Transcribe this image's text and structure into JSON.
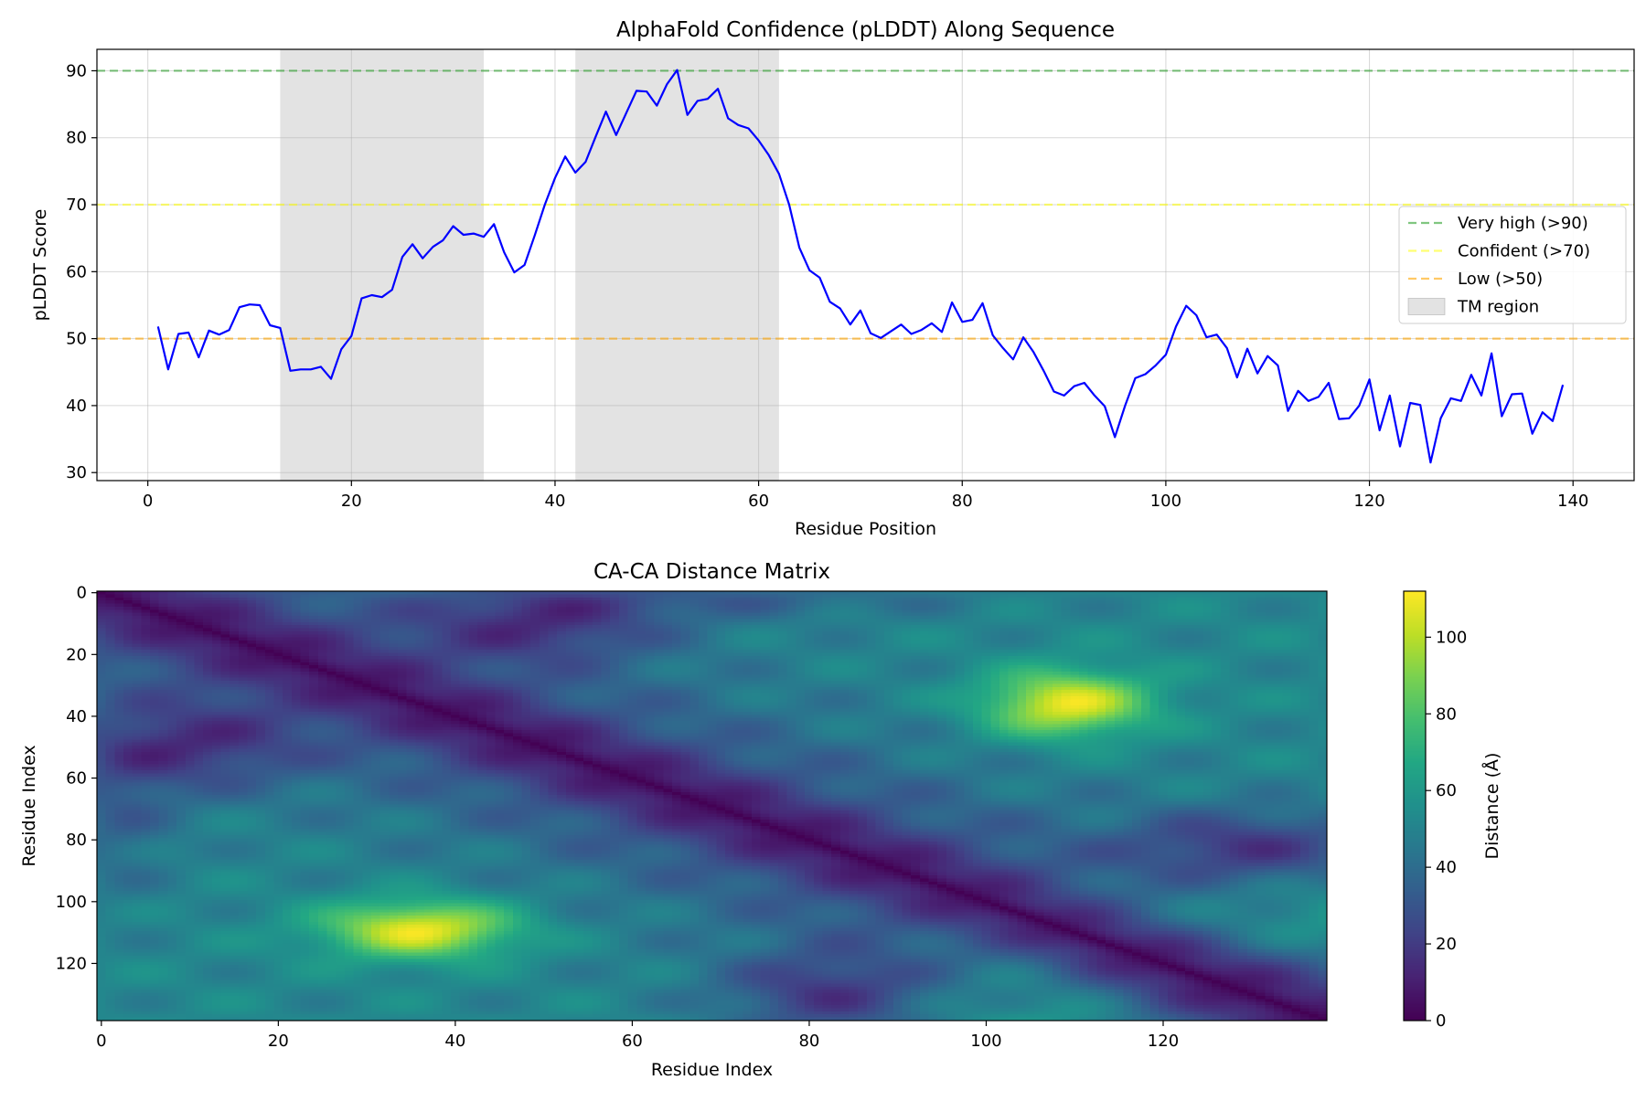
{
  "colors": {
    "line": "#0000ff",
    "very_high": "#2ca02c",
    "confident": "#ffff00",
    "low": "#ffa500",
    "tm_region": "#808080",
    "grid": "#b0b0b0",
    "colormap": "viridis"
  },
  "chart_data": [
    {
      "type": "line",
      "title": "AlphaFold Confidence (pLDDT) Along Sequence",
      "xlabel": "Residue Position",
      "ylabel": "pLDDT Score",
      "xlim": [
        -5,
        146
      ],
      "ylim": [
        28.8,
        93.2
      ],
      "xticks": [
        0,
        20,
        40,
        60,
        80,
        100,
        120,
        140
      ],
      "yticks": [
        30,
        40,
        50,
        60,
        70,
        80,
        90
      ],
      "grid": true,
      "legend_position": "center-right",
      "series": [
        {
          "name": "pLDDT",
          "x": [
            1,
            2,
            3,
            4,
            5,
            6,
            7,
            8,
            9,
            10,
            11,
            12,
            13,
            14,
            15,
            16,
            17,
            18,
            19,
            20,
            21,
            22,
            23,
            24,
            25,
            26,
            27,
            28,
            29,
            30,
            31,
            32,
            33,
            34,
            35,
            36,
            37,
            38,
            39,
            40,
            41,
            42,
            43,
            44,
            45,
            46,
            47,
            48,
            49,
            50,
            51,
            52,
            53,
            54,
            55,
            56,
            57,
            58,
            59,
            60,
            61,
            62,
            63,
            64,
            65,
            66,
            67,
            68,
            69,
            70,
            71,
            72,
            73,
            74,
            75,
            76,
            77,
            78,
            79,
            80,
            81,
            82,
            83,
            84,
            85,
            86,
            87,
            88,
            89,
            90,
            91,
            92,
            93,
            94,
            95,
            96,
            97,
            98,
            99,
            100,
            101,
            102,
            103,
            104,
            105,
            106,
            107,
            108,
            109,
            110,
            111,
            112,
            113,
            114,
            115,
            116,
            117,
            118,
            119,
            120,
            121,
            122,
            123,
            124,
            125,
            126,
            127,
            128,
            129,
            130,
            131,
            132,
            133,
            134,
            135,
            136,
            137,
            138,
            139
          ],
          "values": [
            51.8,
            45.4,
            50.7,
            50.9,
            47.2,
            51.2,
            50.6,
            51.3,
            54.7,
            55.1,
            55.0,
            52.0,
            51.6,
            45.2,
            45.4,
            45.4,
            45.8,
            44.0,
            48.4,
            50.4,
            56.0,
            56.5,
            56.2,
            57.3,
            62.2,
            64.1,
            62.0,
            63.7,
            64.7,
            66.8,
            65.5,
            65.7,
            65.2,
            67.1,
            62.9,
            59.9,
            61.0,
            65.4,
            70.0,
            74.0,
            77.2,
            74.8,
            76.4,
            80.2,
            83.9,
            80.4,
            83.7,
            87.0,
            86.9,
            84.8,
            88.0,
            90.1,
            83.4,
            85.5,
            85.8,
            87.3,
            82.9,
            81.9,
            81.4,
            79.6,
            77.4,
            74.6,
            70.0,
            63.6,
            60.2,
            59.1,
            55.5,
            54.5,
            52.1,
            54.2,
            50.8,
            50.1,
            51.1,
            52.1,
            50.7,
            51.3,
            52.3,
            51.0,
            55.4,
            52.5,
            52.8,
            55.3,
            50.5,
            48.6,
            46.9,
            50.2,
            48.0,
            45.2,
            42.1,
            41.5,
            42.9,
            43.4,
            41.5,
            39.9,
            35.3,
            40.0,
            44.1,
            44.7,
            46.0,
            47.6,
            51.8,
            54.9,
            53.5,
            50.2,
            50.6,
            48.6,
            44.2,
            48.5,
            44.8,
            47.4,
            46.0,
            39.2,
            42.2,
            40.7,
            41.3,
            43.4,
            38.0,
            38.1,
            40.0,
            43.9,
            36.3,
            41.5,
            33.9,
            40.4,
            40.1,
            31.5,
            38.1,
            41.1,
            40.7,
            44.6,
            41.5,
            47.8,
            38.4,
            41.7,
            41.8,
            35.8,
            39.0,
            37.7,
            43.1
          ]
        },
        {
          "name": "Very high (>90)",
          "value": 90
        },
        {
          "name": "Confident (>70)",
          "value": 70
        },
        {
          "name": "Low (>50)",
          "value": 50
        }
      ],
      "tm_regions": [
        [
          13,
          33
        ],
        [
          42,
          62
        ]
      ],
      "legend": [
        "Very high (>90)",
        "Confident (>70)",
        "Low (>50)",
        "TM region"
      ]
    },
    {
      "type": "heatmap",
      "title": "CA-CA Distance Matrix",
      "xlabel": "Residue Index",
      "ylabel": "Residue Index",
      "size": 139,
      "xticks": [
        0,
        20,
        40,
        60,
        80,
        100,
        120
      ],
      "yticks": [
        0,
        20,
        40,
        60,
        80,
        100,
        120
      ],
      "colorbar": {
        "label": "Distance (Å)",
        "range": [
          0,
          112
        ],
        "ticks": [
          0,
          20,
          40,
          60,
          80,
          100
        ]
      },
      "hotspots": [
        {
          "i": 36,
          "j": 109,
          "value": 110
        }
      ],
      "coldspots": [
        {
          "i": 10,
          "j": 50,
          "value": 20
        },
        {
          "i": 82,
          "j": 130,
          "value": 20
        }
      ]
    }
  ]
}
